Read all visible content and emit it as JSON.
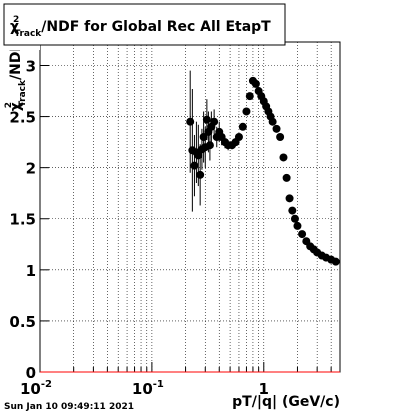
{
  "chart_data": {
    "type": "scatter",
    "title": {
      "symbol": "χ",
      "sup": "2",
      "sub": "Track",
      "text": "/NDF for Global Rec All EtapT"
    },
    "ylabel": {
      "symbol": "χ",
      "sup": "2",
      "sub": "Track",
      "text": "/NDF"
    },
    "xlabel": "pT/|q| (GeV/c)",
    "footer": "Sun Jan 10 09:49:11 2021",
    "log_x": true,
    "grid": true,
    "color": "#000000",
    "xlim": [
      0.01,
      4.8
    ],
    "ylim": [
      0,
      3.23
    ],
    "xticks": [
      {
        "value": 0.01,
        "label": "10",
        "exponent": "-2"
      },
      {
        "value": 0.1,
        "label": "10",
        "exponent": "-1"
      },
      1
    ],
    "yticks": [
      0,
      0.5,
      1,
      1.5,
      2,
      2.5,
      3
    ],
    "x": [
      0.22,
      0.23,
      0.24,
      0.25,
      0.26,
      0.27,
      0.28,
      0.29,
      0.3,
      0.31,
      0.32,
      0.33,
      0.34,
      0.36,
      0.38,
      0.4,
      0.42,
      0.45,
      0.48,
      0.52,
      0.56,
      0.6,
      0.65,
      0.7,
      0.75,
      0.8,
      0.85,
      0.9,
      0.95,
      1.0,
      1.05,
      1.1,
      1.15,
      1.2,
      1.3,
      1.4,
      1.5,
      1.6,
      1.7,
      1.8,
      1.9,
      2.0,
      2.2,
      2.4,
      2.6,
      2.8,
      3.0,
      3.3,
      3.6,
      4.0,
      4.4
    ],
    "values": [
      2.45,
      2.17,
      2.02,
      2.15,
      2.12,
      1.93,
      2.18,
      2.3,
      2.2,
      2.47,
      2.35,
      2.22,
      2.4,
      2.45,
      2.3,
      2.35,
      2.3,
      2.25,
      2.22,
      2.22,
      2.25,
      2.3,
      2.4,
      2.55,
      2.7,
      2.85,
      2.82,
      2.75,
      2.7,
      2.65,
      2.6,
      2.55,
      2.5,
      2.45,
      2.38,
      2.3,
      2.1,
      1.9,
      1.7,
      1.58,
      1.5,
      1.43,
      1.35,
      1.28,
      1.23,
      1.2,
      1.17,
      1.14,
      1.12,
      1.1,
      1.08
    ],
    "errors": [
      0.5,
      0.6,
      0.3,
      0.3,
      0.3,
      0.3,
      0.2,
      0.25,
      0.2,
      0.2,
      0.2,
      0.15,
      0.15,
      0.12,
      0.1,
      0.1,
      0.08,
      0.06,
      0.05,
      0.04,
      0.04,
      0.03,
      0.03,
      0.03,
      0.02,
      0.02,
      0.02,
      0.02,
      0.02,
      0.02,
      0.02,
      0.02,
      0.02,
      0.02,
      0.02,
      0.02,
      0.02,
      0.02,
      0.02,
      0.02,
      0.02,
      0.02,
      0.02,
      0.02,
      0.02,
      0.02,
      0.02,
      0.02,
      0.02,
      0.02,
      0.02
    ]
  }
}
